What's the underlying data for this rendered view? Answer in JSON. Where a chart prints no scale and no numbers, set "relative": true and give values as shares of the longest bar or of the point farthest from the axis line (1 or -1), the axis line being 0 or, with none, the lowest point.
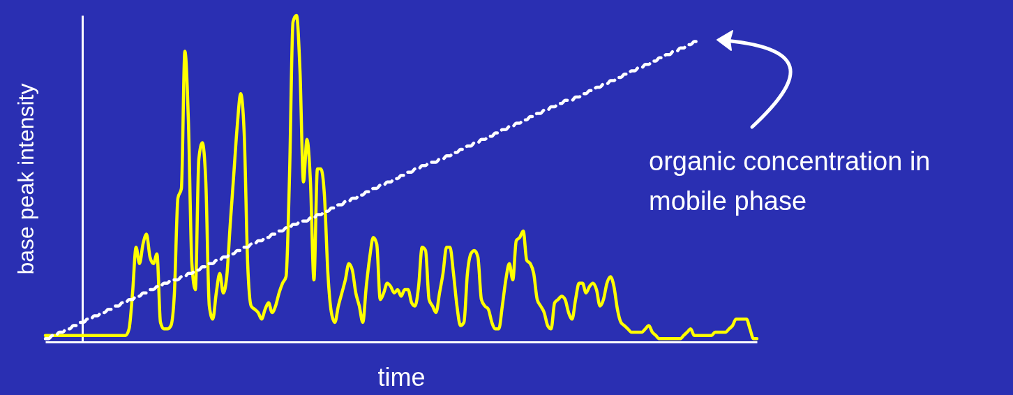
{
  "chart_data": {
    "type": "line",
    "relative": true,
    "xlabel": "time",
    "ylabel": "base peak intensity",
    "categories": [
      null,
      null,
      null,
      null,
      null,
      null,
      null,
      null,
      null,
      null,
      null,
      null,
      null,
      null,
      null,
      null,
      null,
      null,
      null,
      null,
      null,
      null,
      null,
      null,
      null,
      null,
      null,
      null,
      null,
      null,
      null,
      null,
      null,
      null,
      null,
      null,
      null,
      null,
      null,
      null,
      null,
      null,
      null,
      null,
      null,
      null,
      null,
      null,
      null,
      null,
      null,
      null,
      null,
      null,
      null,
      null,
      null,
      null,
      null,
      null,
      null,
      null,
      null,
      null,
      null,
      null,
      null,
      null,
      null,
      null,
      null,
      null,
      null,
      null,
      null,
      null,
      null,
      null,
      null,
      null,
      null,
      null,
      null,
      null,
      null,
      null,
      null,
      null,
      null,
      null,
      null,
      null,
      null,
      null,
      null,
      null,
      null,
      null,
      null,
      null,
      null,
      null,
      null,
      null,
      null,
      null,
      null,
      null,
      null,
      null,
      null,
      null,
      null,
      null,
      null,
      null,
      null,
      null,
      null,
      null,
      null,
      null,
      null,
      null,
      null,
      null,
      null,
      null,
      null,
      null,
      null,
      null,
      null,
      null,
      null,
      null,
      null,
      null,
      null,
      null,
      null,
      null,
      null,
      null,
      null,
      null,
      null,
      null,
      null,
      null,
      null,
      null,
      null,
      null,
      null,
      null,
      null,
      null,
      null,
      null,
      null,
      null,
      null,
      null,
      null,
      null,
      null,
      null,
      null,
      null,
      null,
      null,
      null,
      null,
      null,
      null,
      null,
      null,
      null,
      null,
      null,
      null,
      null,
      null,
      null,
      null,
      null,
      null,
      null,
      null,
      null,
      null,
      null,
      null,
      null,
      null,
      null,
      null,
      null,
      null,
      null,
      null,
      null,
      null,
      null
    ],
    "series": [
      {
        "color": "#ffff00",
        "line_style": "solid",
        "values": [
          0.02,
          0.02,
          0.02,
          0.02,
          0.02,
          0.02,
          0.02,
          0.02,
          0.02,
          0.02,
          0.02,
          0.02,
          0.02,
          0.02,
          0.02,
          0.02,
          0.02,
          0.02,
          0.02,
          0.02,
          0.02,
          0.02,
          0.02,
          0.02,
          0.04,
          0.15,
          0.29,
          0.24,
          0.3,
          0.33,
          0.26,
          0.24,
          0.27,
          0.06,
          0.04,
          0.04,
          0.05,
          0.15,
          0.44,
          0.47,
          0.89,
          0.68,
          0.24,
          0.16,
          0.56,
          0.61,
          0.49,
          0.11,
          0.07,
          0.15,
          0.21,
          0.15,
          0.2,
          0.36,
          0.51,
          0.66,
          0.76,
          0.64,
          0.24,
          0.11,
          0.1,
          0.09,
          0.07,
          0.1,
          0.12,
          0.09,
          0.11,
          0.15,
          0.18,
          0.2,
          0.51,
          0.98,
          1,
          0.83,
          0.49,
          0.62,
          0.49,
          0.19,
          0.53,
          0.53,
          0.45,
          0.21,
          0.09,
          0.06,
          0.11,
          0.15,
          0.19,
          0.24,
          0.22,
          0.15,
          0.11,
          0.06,
          0.17,
          0.26,
          0.32,
          0.3,
          0.13,
          0.15,
          0.18,
          0.17,
          0.15,
          0.16,
          0.14,
          0.16,
          0.16,
          0.12,
          0.11,
          0.17,
          0.29,
          0.28,
          0.13,
          0.11,
          0.09,
          0.15,
          0.21,
          0.29,
          0.29,
          0.21,
          0.11,
          0.05,
          0.06,
          0.21,
          0.27,
          0.28,
          0.26,
          0.13,
          0.11,
          0.1,
          0.06,
          0.04,
          0.04,
          0.11,
          0.19,
          0.24,
          0.19,
          0.31,
          0.32,
          0.34,
          0.25,
          0.24,
          0.21,
          0.13,
          0.11,
          0.09,
          0.05,
          0.04,
          0.12,
          0.13,
          0.14,
          0.13,
          0.09,
          0.07,
          0.13,
          0.18,
          0.18,
          0.15,
          0.17,
          0.18,
          0.16,
          0.11,
          0.13,
          0.18,
          0.2,
          0.17,
          0.1,
          0.06,
          0.05,
          0.04,
          0.03,
          0.03,
          0.03,
          0.03,
          0.04,
          0.05,
          0.03,
          0.02,
          0.01,
          0.01,
          0.01,
          0.01,
          0.01,
          0.01,
          0.01,
          0.02,
          0.03,
          0.04,
          0.02,
          0.02,
          0.02,
          0.02,
          0.02,
          0.02,
          0.03,
          0.03,
          0.03,
          0.03,
          0.04,
          0.05,
          0.07,
          0.07,
          0.07,
          0.07,
          0.04,
          0.01,
          0.01
        ]
      },
      {
        "color": "#ffffff",
        "line_style": "dashed",
        "values": [
          0.01,
          0.01,
          0.02,
          0.02,
          0.03,
          0.03,
          0.04,
          0.04,
          0.05,
          0.05,
          0.06,
          0.06,
          0.07,
          0.07,
          0.08,
          0.08,
          0.09,
          0.09,
          0.1,
          0.1,
          0.11,
          0.11,
          0.12,
          0.12,
          0.13,
          0.13,
          0.14,
          0.14,
          0.15,
          0.15,
          0.16,
          0.16,
          0.17,
          0.17,
          0.18,
          0.18,
          0.19,
          0.19,
          0.19,
          0.2,
          0.2,
          0.21,
          0.21,
          0.22,
          0.22,
          0.23,
          0.23,
          0.24,
          0.24,
          0.25,
          0.25,
          0.26,
          0.26,
          0.27,
          0.27,
          0.28,
          0.28,
          0.29,
          0.29,
          0.3,
          0.3,
          0.31,
          0.31,
          0.32,
          0.32,
          0.33,
          0.33,
          0.34,
          0.34,
          0.35,
          0.35,
          0.36,
          0.36,
          0.37,
          0.37,
          0.37,
          0.38,
          0.38,
          0.39,
          0.39,
          0.4,
          0.4,
          0.41,
          0.41,
          0.42,
          0.42,
          0.43,
          0.43,
          0.44,
          0.44,
          0.45,
          0.45,
          0.46,
          0.46,
          0.47,
          0.47,
          0.48,
          0.48,
          0.49,
          0.49,
          0.5,
          0.5,
          0.51,
          0.51,
          0.52,
          0.52,
          0.53,
          0.53,
          0.54,
          0.54,
          0.55,
          0.55,
          0.55,
          0.56,
          0.56,
          0.57,
          0.57,
          0.58,
          0.58,
          0.59,
          0.59,
          0.6,
          0.6,
          0.61,
          0.61,
          0.62,
          0.62,
          0.63,
          0.63,
          0.64,
          0.64,
          0.65,
          0.65,
          0.66,
          0.66,
          0.67,
          0.67,
          0.68,
          0.68,
          0.69,
          0.69,
          0.7,
          0.7,
          0.71,
          0.71,
          0.72,
          0.72,
          0.73,
          0.73,
          0.74,
          0.74,
          0.74,
          0.75,
          0.75,
          0.76,
          0.76,
          0.77,
          0.77,
          0.78,
          0.78,
          0.79,
          0.79,
          0.8,
          0.8,
          0.81,
          0.81,
          0.82,
          0.82,
          0.83,
          0.83,
          0.84,
          0.84,
          0.85,
          0.85,
          0.86,
          0.86,
          0.87,
          0.87,
          0.88,
          0.88,
          0.89,
          0.89,
          0.9,
          0.9,
          0.91,
          0.91,
          0.92,
          0.92,
          null,
          null,
          null,
          null,
          null,
          null,
          null,
          null,
          null,
          null,
          null,
          null,
          null,
          null,
          null,
          null,
          null
        ]
      }
    ],
    "annotations": [
      "organic concentration in mobile phase"
    ]
  }
}
